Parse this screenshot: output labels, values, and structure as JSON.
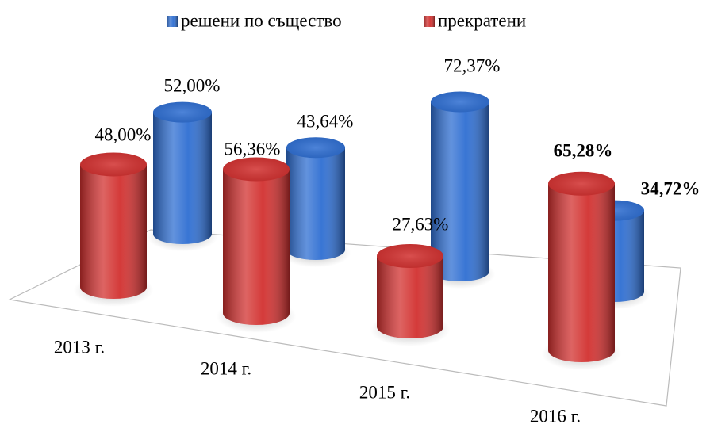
{
  "chart_data": {
    "type": "bar3d",
    "categories": [
      "2013 г.",
      "2014 г.",
      "2015 г.",
      "2016 г."
    ],
    "series": [
      {
        "name": "решени по същество",
        "color": "#2e6ed2",
        "values": [
          52.0,
          43.64,
          72.37,
          34.72
        ],
        "value_labels": [
          "52,00%",
          "43,64%",
          "72,37%",
          "34,72%"
        ]
      },
      {
        "name": "прекратени",
        "color": "#d2302f",
        "values": [
          48.0,
          56.36,
          27.63,
          65.28
        ],
        "value_labels": [
          "48,00%",
          "56,36%",
          "27,63%",
          "65,28%"
        ]
      }
    ],
    "legend": "top"
  }
}
